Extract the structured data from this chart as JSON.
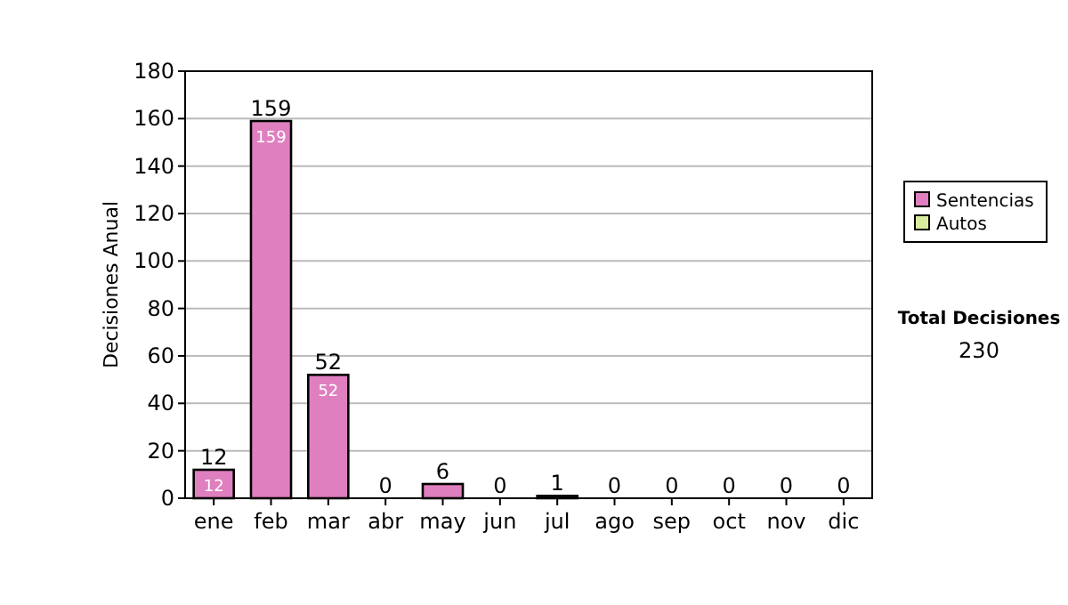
{
  "chart_data": {
    "type": "bar",
    "ylabel": "Decisiones Anual",
    "categories": [
      "ene",
      "feb",
      "mar",
      "abr",
      "may",
      "jun",
      "jul",
      "ago",
      "sep",
      "oct",
      "nov",
      "dic"
    ],
    "series": [
      {
        "name": "Sentencias",
        "color": "#df7fbf",
        "values": [
          12,
          159,
          52,
          0,
          6,
          0,
          1,
          0,
          0,
          0,
          0,
          0
        ],
        "value_labels": [
          "12",
          "159",
          "52",
          null,
          null,
          null,
          null,
          null,
          null,
          null,
          null,
          null
        ]
      },
      {
        "name": "Autos",
        "color": "#d8eca0",
        "values": [
          0,
          0,
          0,
          0,
          0,
          0,
          0,
          0,
          0,
          0,
          0,
          0
        ]
      }
    ],
    "stacked": true,
    "totals": [
      "12",
      "159",
      "52",
      "0",
      "6",
      "0",
      "1",
      "0",
      "0",
      "0",
      "0",
      "0"
    ],
    "ylim": [
      0,
      180
    ],
    "yticks": [
      0,
      20,
      40,
      60,
      80,
      100,
      120,
      140,
      160,
      180
    ],
    "grid": "y",
    "legend": "right",
    "annotations": [
      "Total Decisiones",
      "230"
    ]
  }
}
